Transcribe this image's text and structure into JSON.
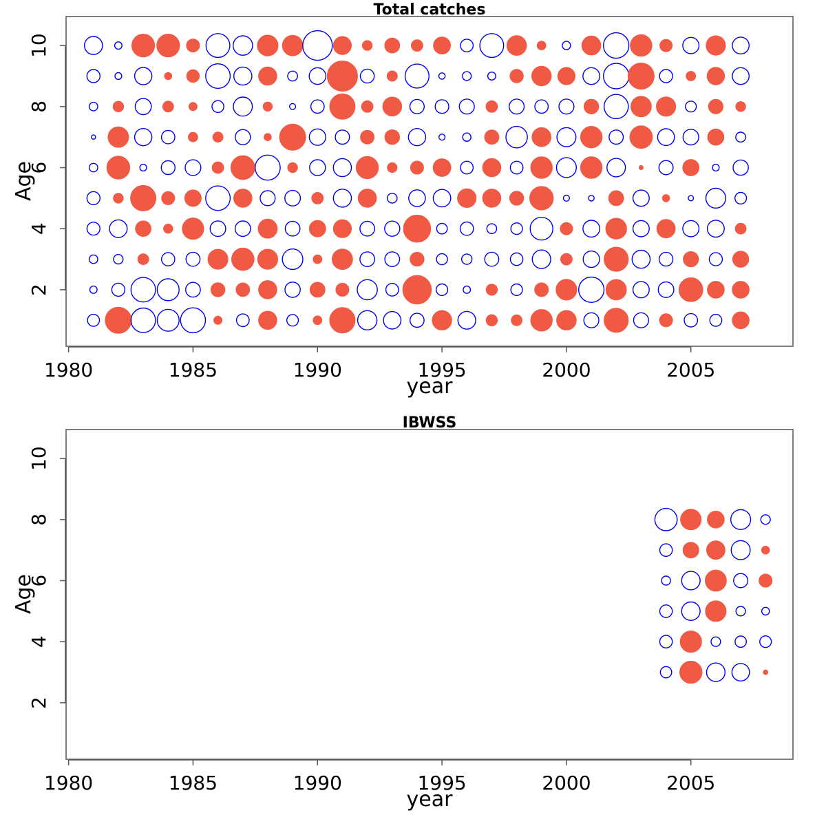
{
  "colors": {
    "positive": "#f05a44",
    "negative": "#0000ee",
    "axis": "#555555"
  },
  "chart_data": [
    {
      "type": "bubble",
      "title": "Total catches",
      "xlabel": "year",
      "ylabel": "Age",
      "xlim": [
        1979.9,
        2009.1
      ],
      "ylim": [
        0.15,
        10.95
      ],
      "xticks": [
        1980,
        1985,
        1990,
        1995,
        2000,
        2005
      ],
      "yticks": [
        2,
        4,
        6,
        8,
        10
      ],
      "encoding": "filled red = positive, open blue = negative; bubble size = magnitude",
      "years": [
        1981,
        1982,
        1983,
        1984,
        1985,
        1986,
        1987,
        1988,
        1989,
        1990,
        1991,
        1992,
        1993,
        1994,
        1995,
        1996,
        1997,
        1998,
        1999,
        2000,
        2001,
        2002,
        2003,
        2004,
        2005,
        2006,
        2007
      ],
      "ages": [
        1,
        2,
        3,
        4,
        5,
        6,
        7,
        8,
        9,
        10
      ],
      "values": [
        [
          -0.32,
          -0.12,
          -0.16,
          -0.37,
          -0.38,
          -0.16,
          -0.04,
          -0.16,
          -0.38,
          -0.72
        ],
        [
          1.52,
          -0.38,
          -0.2,
          -0.69,
          0.22,
          1.17,
          0.93,
          0.25,
          -0.1,
          -0.12
        ],
        [
          -1.34,
          -1.34,
          0.26,
          0.54,
          1.44,
          -0.1,
          -0.66,
          -0.58,
          -0.66,
          1.16
        ],
        [
          -1.06,
          -1.06,
          -0.39,
          0.19,
          0.38,
          -0.42,
          -0.4,
          0.26,
          0.12,
          1.16
        ],
        [
          -1.38,
          -0.48,
          -0.44,
          1.02,
          0.61,
          -0.55,
          0.2,
          0.15,
          0.36,
          0.38
        ],
        [
          0.15,
          0.44,
          0.89,
          -0.54,
          -1.33,
          0.3,
          0.23,
          -0.31,
          -1.33,
          -1.26
        ],
        [
          -0.36,
          0.41,
          1.12,
          -0.53,
          0.74,
          1.28,
          -0.51,
          -0.8,
          -0.72,
          -0.84
        ],
        [
          0.75,
          0.75,
          0.9,
          0.82,
          -0.5,
          -1.4,
          0.12,
          0.19,
          0.75,
          0.96
        ],
        [
          -0.3,
          -0.52,
          -0.94,
          -0.48,
          -0.54,
          0.22,
          1.52,
          -0.08,
          -0.22,
          0.94
        ],
        [
          0.17,
          0.5,
          0.17,
          0.6,
          0.3,
          -0.56,
          -0.6,
          -0.4,
          -0.62,
          -1.94
        ],
        [
          1.44,
          0.38,
          0.94,
          0.72,
          -0.72,
          -0.72,
          -0.45,
          1.44,
          2.04,
          0.72
        ],
        [
          -0.83,
          -0.9,
          -0.48,
          -0.48,
          0.74,
          1.1,
          0.42,
          0.3,
          -0.43,
          0.22
        ],
        [
          -0.68,
          -0.36,
          -0.48,
          -0.51,
          -0.21,
          0.21,
          0.48,
          0.8,
          0.24,
          0.5
        ],
        [
          -0.44,
          1.82,
          0.44,
          1.66,
          -0.62,
          0.38,
          -0.66,
          -0.46,
          -1.28,
          0.3
        ],
        [
          0.85,
          -0.3,
          -0.27,
          -0.25,
          -0.68,
          0.7,
          -0.08,
          -0.41,
          -0.09,
          0.65
        ],
        [
          -0.7,
          -0.12,
          -0.24,
          -0.4,
          0.78,
          -0.36,
          -0.15,
          -0.5,
          -0.17,
          -0.36
        ],
        [
          0.28,
          0.28,
          -0.44,
          -0.21,
          0.74,
          0.74,
          0.46,
          0.3,
          -0.14,
          -1.26
        ],
        [
          0.26,
          -0.3,
          -0.35,
          -0.3,
          0.44,
          -0.36,
          -1.02,
          -0.5,
          0.4,
          0.86
        ],
        [
          1.04,
          0.42,
          -0.76,
          -1.15,
          1.24,
          1.04,
          0.8,
          -0.4,
          0.85,
          0.17
        ],
        [
          0.86,
          0.96,
          0.3,
          0.34,
          -0.08,
          -0.87,
          -0.8,
          -0.5,
          0.67,
          -0.15
        ],
        [
          -0.5,
          -1.42,
          -0.6,
          -0.63,
          -0.07,
          1.04,
          1.04,
          0.48,
          -0.63,
          0.8
        ],
        [
          1.3,
          0.94,
          1.3,
          0.98,
          0.5,
          -0.76,
          -0.45,
          -1.3,
          -1.44,
          -1.44
        ],
        [
          -0.5,
          -0.59,
          -0.72,
          -0.59,
          -0.59,
          0.04,
          1.14,
          0.94,
          1.52,
          1.04
        ],
        [
          0.38,
          -0.54,
          -0.42,
          0.76,
          0.12,
          -0.45,
          -0.63,
          0.84,
          -0.38,
          0.34
        ],
        [
          -0.4,
          1.28,
          0.52,
          -0.59,
          -0.06,
          0.6,
          -0.55,
          -0.26,
          0.2,
          -0.59
        ],
        [
          -0.32,
          0.64,
          -0.38,
          -0.64,
          -0.88,
          -0.1,
          0.59,
          0.47,
          0.68,
          0.84
        ],
        [
          0.64,
          0.64,
          0.58,
          0.26,
          -0.3,
          -0.52,
          -0.22,
          0.22,
          -0.63,
          -0.63
        ]
      ]
    },
    {
      "type": "bubble",
      "title": "IBWSS",
      "xlabel": "year",
      "ylabel": "Age",
      "xlim": [
        1979.9,
        2009.1
      ],
      "ylim": [
        0.15,
        10.95
      ],
      "xticks": [
        1980,
        1985,
        1990,
        1995,
        2000,
        2005
      ],
      "yticks": [
        2,
        4,
        6,
        8,
        10
      ],
      "encoding": "filled red = positive, open blue = negative; bubble size = magnitude",
      "years": [
        2004,
        2005,
        2006,
        2007,
        2008
      ],
      "ages": [
        3,
        4,
        5,
        6,
        7,
        8
      ],
      "values": [
        [
          -0.28,
          -0.35,
          -0.35,
          -0.18,
          -0.35,
          -1.1
        ],
        [
          1.1,
          1.02,
          -0.76,
          -0.76,
          0.56,
          0.95
        ],
        [
          -0.76,
          -0.2,
          0.95,
          1.0,
          0.76,
          0.64
        ],
        [
          -0.68,
          -0.28,
          -0.2,
          -0.45,
          -0.8,
          -0.88
        ],
        [
          0.05,
          -0.3,
          -0.13,
          0.38,
          0.14,
          -0.2
        ]
      ]
    }
  ]
}
